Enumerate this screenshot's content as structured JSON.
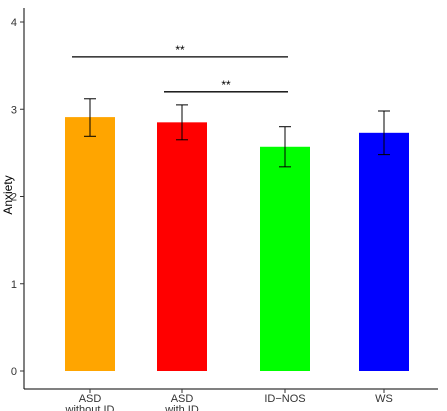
{
  "chart_data": {
    "type": "bar",
    "title": "",
    "xlabel": "",
    "ylabel": "Anxiety",
    "ylim": [
      0,
      4
    ],
    "yticks": [
      "0",
      "1",
      "2",
      "3",
      "4"
    ],
    "grid": false,
    "categories": [
      [
        "ASD",
        "without ID"
      ],
      [
        "ASD",
        "with ID"
      ],
      [
        "ID−NOS"
      ],
      [
        "WS"
      ]
    ],
    "values": [
      2.91,
      2.85,
      2.57,
      2.73
    ],
    "error_low": [
      2.69,
      2.65,
      2.34,
      2.48
    ],
    "error_high": [
      3.12,
      3.05,
      2.8,
      2.98
    ],
    "colors": [
      "#FFA500",
      "#FF0000",
      "#00FF00",
      "#0000FF"
    ],
    "significance": [
      {
        "from": 0,
        "to": 2,
        "y": 3.6,
        "label": "**"
      },
      {
        "from": 1,
        "to": 2,
        "y": 3.2,
        "label": "**"
      }
    ]
  }
}
